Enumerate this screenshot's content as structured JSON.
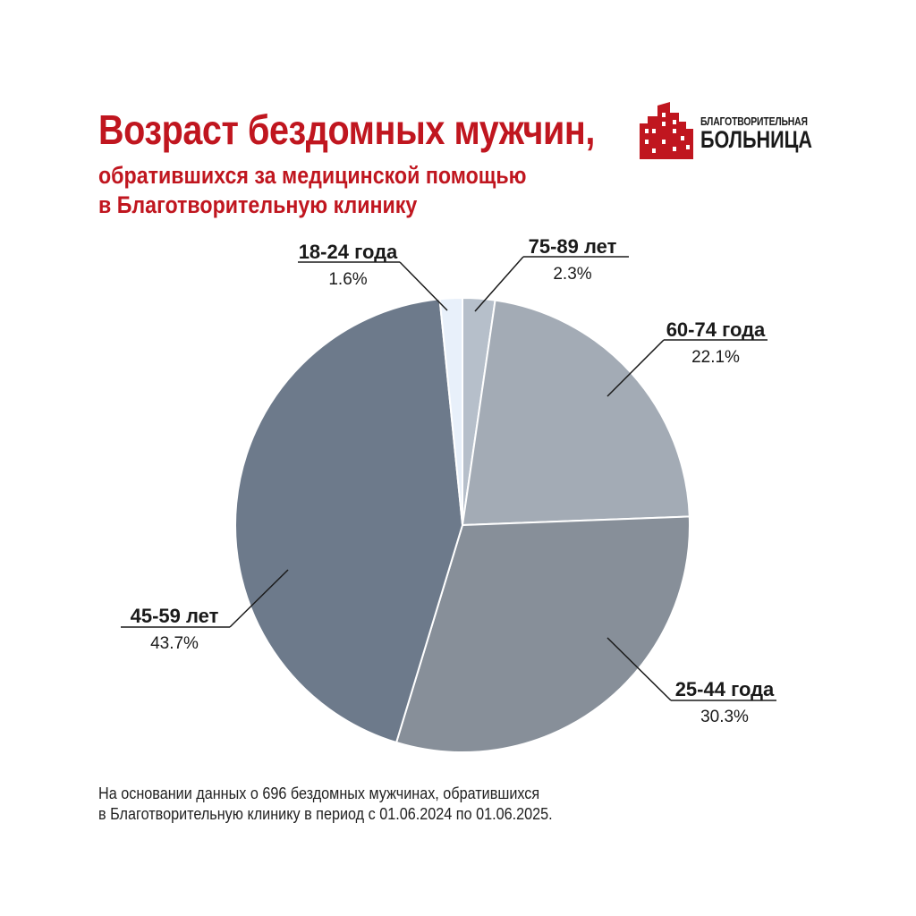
{
  "header": {
    "title": "Возраст бездомных мужчин,",
    "subtitle_line1": "обратившихся за медицинской помощью",
    "subtitle_line2": "в Благотворительную клинику"
  },
  "logo": {
    "line1": "БЛАГОТВОРИТЕЛЬНАЯ",
    "line2": "БОЛЬНИЦА",
    "icon": "red-building-icon",
    "color": "#c0161f"
  },
  "footnote": {
    "line1": "На основании данных о 696 бездомных мужчинах, обратившихся",
    "line2": "в Благотворительную клинику в период с 01.06.2024 по 01.06.2025."
  },
  "colors": {
    "accent": "#c0161f",
    "text": "#1a1a1a",
    "leader": "#1a1a1a"
  },
  "chart_data": {
    "type": "pie",
    "start": "12 o'clock",
    "direction": "clockwise",
    "slices": [
      {
        "label": "75-89 лет",
        "value": 2.3,
        "value_label": "2.3%",
        "color": "#b6bfca"
      },
      {
        "label": "60-74 года",
        "value": 22.1,
        "value_label": "22.1%",
        "color": "#a3abb5"
      },
      {
        "label": "25-44 года",
        "value": 30.3,
        "value_label": "30.3%",
        "color": "#878f99"
      },
      {
        "label": "45-59 лет",
        "value": 43.7,
        "value_label": "43.7%",
        "color": "#6d7a8b"
      },
      {
        "label": "18-24 года",
        "value": 1.6,
        "value_label": "1.6%",
        "color": "#e8f0fa"
      }
    ]
  }
}
